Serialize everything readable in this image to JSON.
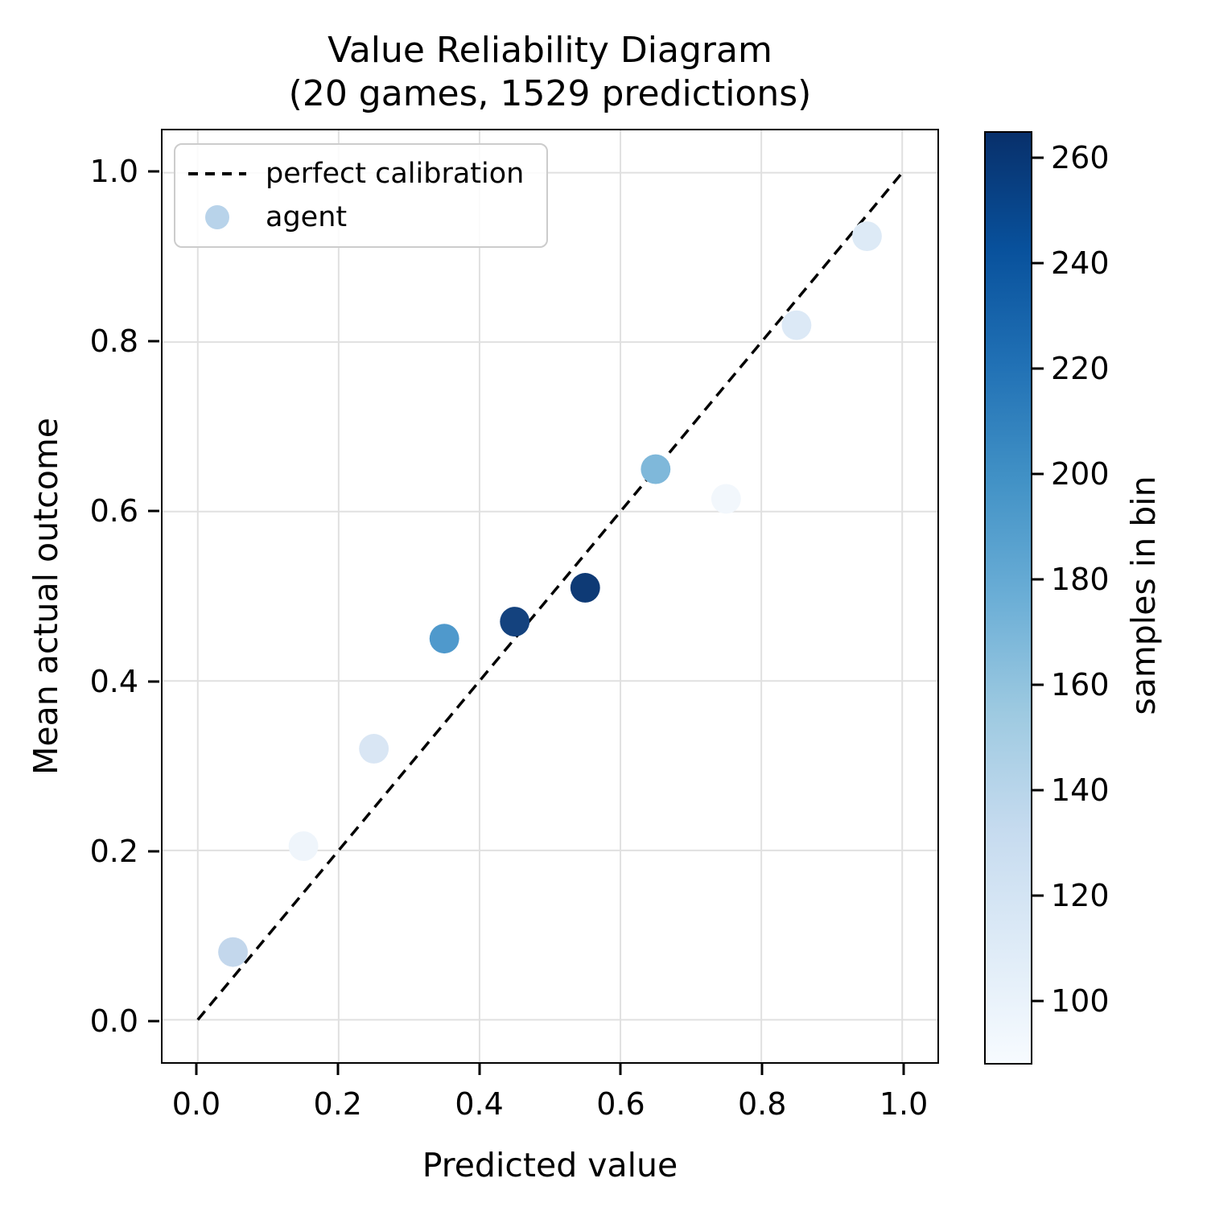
{
  "figure": {
    "title": "Value Reliability Diagram",
    "subtitle": "(20 games, 1529 predictions)"
  },
  "chart_data": {
    "type": "scatter",
    "title": "Value Reliability Diagram (20 games, 1529 predictions)",
    "xlabel": "Predicted value",
    "ylabel": "Mean actual outcome",
    "xlim": [
      -0.05,
      1.05
    ],
    "ylim": [
      -0.05,
      1.05
    ],
    "x_ticks": [
      0.0,
      0.2,
      0.4,
      0.6,
      0.8,
      1.0
    ],
    "y_ticks": [
      0.0,
      0.2,
      0.4,
      0.6,
      0.8,
      1.0
    ],
    "grid": true,
    "reference_line": {
      "label": "perfect calibration",
      "from": [
        0,
        0
      ],
      "to": [
        1,
        1
      ],
      "style": "dashed",
      "color": "#000000"
    },
    "legend": {
      "position": "upper left",
      "entries": [
        {
          "label": "perfect calibration",
          "marker": "dashed-line",
          "color": "#000000"
        },
        {
          "label": "agent",
          "marker": "dot",
          "color": "#b8d3ea"
        }
      ]
    },
    "series": [
      {
        "name": "agent",
        "points": [
          {
            "x": 0.05,
            "y": 0.08,
            "samples": 130,
            "color": "#c3d7ec"
          },
          {
            "x": 0.15,
            "y": 0.205,
            "samples": 99,
            "color": "#eff5fb"
          },
          {
            "x": 0.25,
            "y": 0.32,
            "samples": 115,
            "color": "#d9e6f4"
          },
          {
            "x": 0.35,
            "y": 0.45,
            "samples": 185,
            "color": "#4f99cc"
          },
          {
            "x": 0.45,
            "y": 0.47,
            "samples": 250,
            "color": "#14427e"
          },
          {
            "x": 0.55,
            "y": 0.51,
            "samples": 260,
            "color": "#0e3a75"
          },
          {
            "x": 0.65,
            "y": 0.65,
            "samples": 167,
            "color": "#7fb8da"
          },
          {
            "x": 0.75,
            "y": 0.615,
            "samples": 93,
            "color": "#f2f7fc"
          },
          {
            "x": 0.85,
            "y": 0.82,
            "samples": 115,
            "color": "#dce9f6"
          },
          {
            "x": 0.95,
            "y": 0.925,
            "samples": 115,
            "color": "#ddeaf6"
          }
        ]
      }
    ],
    "colorbar": {
      "label": "samples in bin",
      "ticks": [
        100,
        120,
        140,
        160,
        180,
        200,
        220,
        240,
        260
      ],
      "vmin": 88,
      "vmax": 265,
      "colormap": "Blues",
      "gradient_top_to_bottom": [
        "#08306b",
        "#08519c",
        "#2171b5",
        "#4292c6",
        "#6baed6",
        "#9ecae1",
        "#c6dbef",
        "#deebf7",
        "#f7fbff"
      ]
    }
  },
  "colors": {
    "background": "#ffffff",
    "grid": "#e0e0e0",
    "spine": "#000000"
  }
}
